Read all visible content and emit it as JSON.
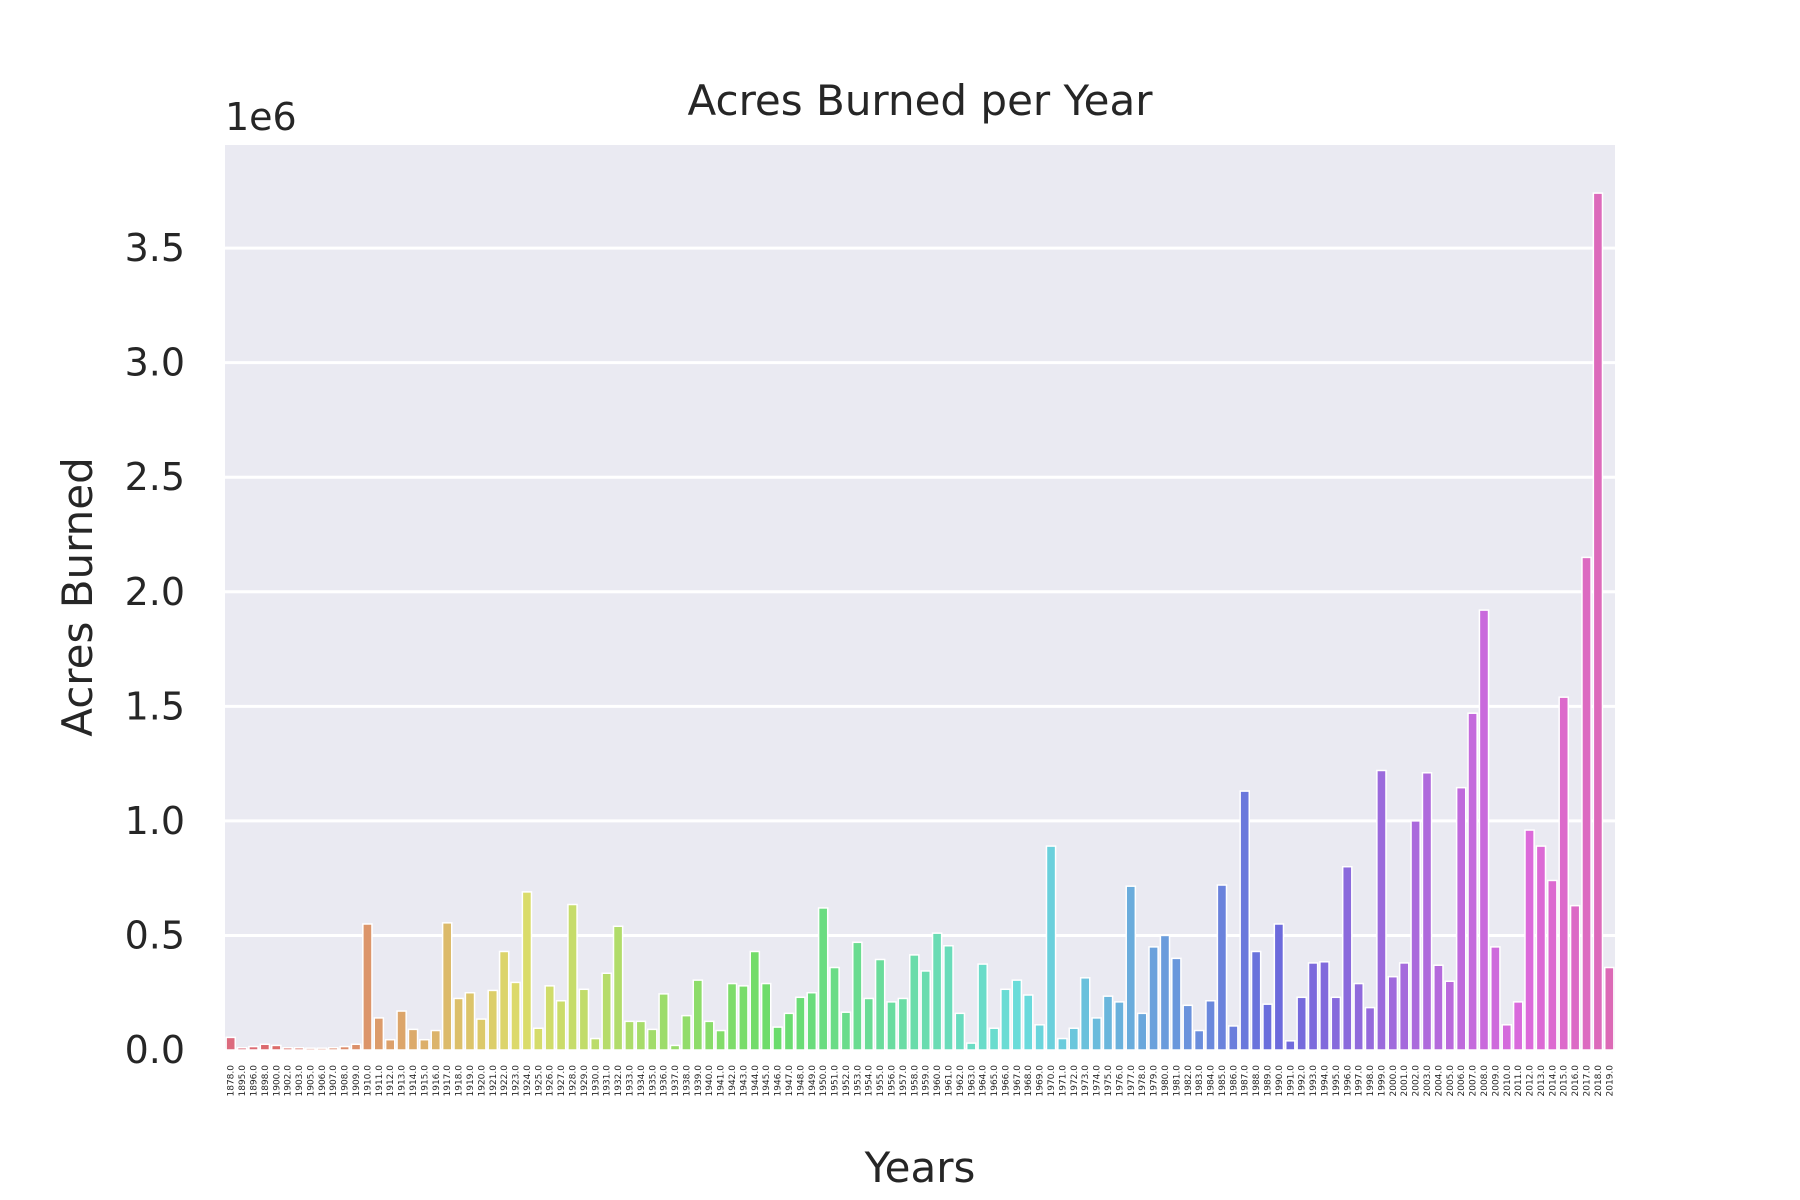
{
  "chart_data": {
    "type": "bar",
    "title": "Acres Burned per Year",
    "xlabel": "Years",
    "ylabel": "Acres Burned",
    "offset_text": "1e6",
    "ylim": [
      0,
      3950000
    ],
    "yticks": [
      "0.0",
      "0.5",
      "1.0",
      "1.5",
      "2.0",
      "2.5",
      "3.0",
      "3.5"
    ],
    "grid": true,
    "legend": "none",
    "categories": [
      "1878.0",
      "1895.0",
      "1896.0",
      "1898.0",
      "1900.0",
      "1902.0",
      "1903.0",
      "1905.0",
      "1906.0",
      "1907.0",
      "1908.0",
      "1909.0",
      "1910.0",
      "1911.0",
      "1912.0",
      "1913.0",
      "1914.0",
      "1915.0",
      "1916.0",
      "1917.0",
      "1918.0",
      "1919.0",
      "1920.0",
      "1921.0",
      "1922.0",
      "1923.0",
      "1924.0",
      "1925.0",
      "1926.0",
      "1927.0",
      "1928.0",
      "1929.0",
      "1930.0",
      "1931.0",
      "1932.0",
      "1933.0",
      "1934.0",
      "1935.0",
      "1936.0",
      "1937.0",
      "1938.0",
      "1939.0",
      "1940.0",
      "1941.0",
      "1942.0",
      "1943.0",
      "1944.0",
      "1945.0",
      "1946.0",
      "1947.0",
      "1948.0",
      "1949.0",
      "1950.0",
      "1951.0",
      "1952.0",
      "1953.0",
      "1954.0",
      "1955.0",
      "1956.0",
      "1957.0",
      "1958.0",
      "1959.0",
      "1960.0",
      "1961.0",
      "1962.0",
      "1963.0",
      "1964.0",
      "1965.0",
      "1966.0",
      "1967.0",
      "1968.0",
      "1969.0",
      "1970.0",
      "1971.0",
      "1972.0",
      "1973.0",
      "1974.0",
      "1975.0",
      "1976.0",
      "1977.0",
      "1978.0",
      "1979.0",
      "1980.0",
      "1981.0",
      "1982.0",
      "1983.0",
      "1984.0",
      "1985.0",
      "1986.0",
      "1987.0",
      "1988.0",
      "1989.0",
      "1990.0",
      "1991.0",
      "1992.0",
      "1993.0",
      "1994.0",
      "1995.0",
      "1996.0",
      "1997.0",
      "1998.0",
      "1999.0",
      "2000.0",
      "2001.0",
      "2002.0",
      "2003.0",
      "2004.0",
      "2005.0",
      "2006.0",
      "2007.0",
      "2008.0",
      "2009.0",
      "2010.0",
      "2011.0",
      "2012.0",
      "2013.0",
      "2014.0",
      "2015.0",
      "2016.0",
      "2017.0",
      "2018.0",
      "2019.0"
    ],
    "values": [
      55000,
      10000,
      15000,
      25000,
      20000,
      10000,
      10000,
      8000,
      8000,
      10000,
      15000,
      25000,
      550000,
      140000,
      45000,
      170000,
      90000,
      45000,
      85000,
      555000,
      225000,
      250000,
      135000,
      260000,
      430000,
      295000,
      690000,
      95000,
      280000,
      215000,
      635000,
      265000,
      50000,
      335000,
      540000,
      125000,
      125000,
      90000,
      245000,
      20000,
      150000,
      305000,
      125000,
      85000,
      290000,
      280000,
      430000,
      290000,
      100000,
      160000,
      230000,
      250000,
      620000,
      360000,
      165000,
      470000,
      225000,
      395000,
      210000,
      225000,
      415000,
      345000,
      510000,
      455000,
      160000,
      30000,
      375000,
      95000,
      265000,
      305000,
      240000,
      110000,
      890000,
      50000,
      95000,
      315000,
      140000,
      235000,
      210000,
      715000,
      160000,
      450000,
      500000,
      400000,
      195000,
      85000,
      215000,
      720000,
      105000,
      1130000,
      430000,
      200000,
      550000,
      40000,
      230000,
      380000,
      385000,
      230000,
      800000,
      290000,
      185000,
      1220000,
      320000,
      380000,
      1000000,
      1210000,
      370000,
      300000,
      1145000,
      1470000,
      1920000,
      450000,
      110000,
      210000,
      960000,
      890000,
      740000,
      1540000,
      630000,
      2150000,
      3740000,
      360000
    ]
  }
}
